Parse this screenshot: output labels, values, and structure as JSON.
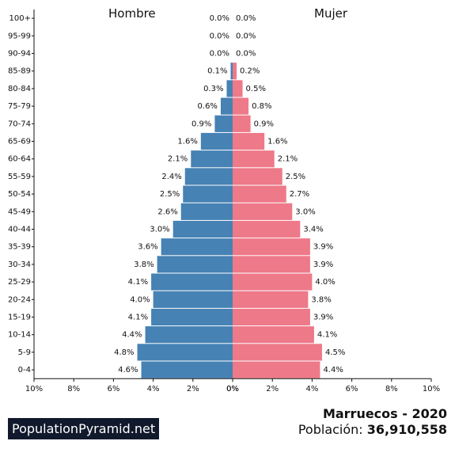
{
  "titles": {
    "male": "Hombre",
    "female": "Mujer"
  },
  "footer": {
    "brand": "PopulationPyramid.net",
    "country_year": "Marruecos - 2020",
    "population_label": "Población:",
    "population_value": "36,910,558"
  },
  "colors": {
    "male": "#4682b4",
    "female": "#ee7989"
  },
  "chart_data": {
    "type": "bar",
    "orientation": "horizontal-population-pyramid",
    "categories": [
      "100+",
      "95-99",
      "90-94",
      "85-89",
      "80-84",
      "75-79",
      "70-74",
      "65-69",
      "60-64",
      "55-59",
      "50-54",
      "45-49",
      "40-44",
      "35-39",
      "30-34",
      "25-29",
      "20-24",
      "15-19",
      "10-14",
      "5-9",
      "0-4"
    ],
    "series": [
      {
        "name": "Hombre",
        "values": [
          0.0,
          0.0,
          0.0,
          0.1,
          0.3,
          0.6,
          0.9,
          1.6,
          2.1,
          2.4,
          2.5,
          2.6,
          3.0,
          3.6,
          3.8,
          4.1,
          4.0,
          4.1,
          4.4,
          4.8,
          4.6
        ],
        "labels": [
          "0.0%",
          "0.0%",
          "0.0%",
          "0.1%",
          "0.3%",
          "0.6%",
          "0.9%",
          "1.6%",
          "2.1%",
          "2.4%",
          "2.5%",
          "2.6%",
          "3.0%",
          "3.6%",
          "3.8%",
          "4.1%",
          "4.0%",
          "4.1%",
          "4.4%",
          "4.8%",
          "4.6%"
        ]
      },
      {
        "name": "Mujer",
        "values": [
          0.0,
          0.0,
          0.0,
          0.2,
          0.5,
          0.8,
          0.9,
          1.6,
          2.1,
          2.5,
          2.7,
          3.0,
          3.4,
          3.9,
          3.9,
          4.0,
          3.8,
          3.9,
          4.1,
          4.5,
          4.4
        ],
        "labels": [
          "0.0%",
          "0.0%",
          "0.0%",
          "0.2%",
          "0.5%",
          "0.8%",
          "0.9%",
          "1.6%",
          "2.1%",
          "2.5%",
          "2.7%",
          "3.0%",
          "3.4%",
          "3.9%",
          "3.9%",
          "4.0%",
          "3.8%",
          "3.9%",
          "4.1%",
          "4.5%",
          "4.4%"
        ]
      }
    ],
    "xlim": [
      0,
      10
    ],
    "ticks_male": [
      "10%",
      "8%",
      "6%",
      "4%",
      "2%",
      "0%"
    ],
    "ticks_female": [
      "0%",
      "2%",
      "4%",
      "6%",
      "8%",
      "10%"
    ],
    "grid": false
  }
}
